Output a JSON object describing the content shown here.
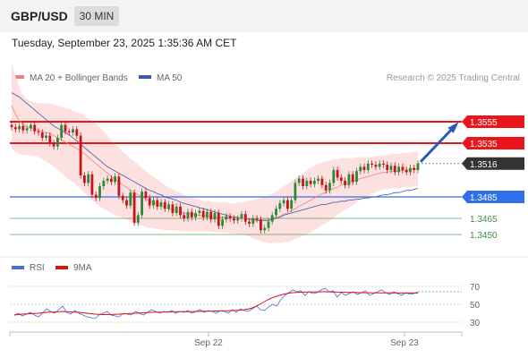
{
  "header": {
    "pair": "GBP/USD",
    "timeframe": "30 MIN",
    "datetime": "Tuesday, September 23, 2025 1:35:36 AM CET"
  },
  "legend": {
    "items": [
      {
        "label": "MA 20 + Bollinger Bands",
        "color": "#f08080"
      },
      {
        "label": "MA 50",
        "color": "#3a5aa8"
      }
    ],
    "credit": "Research © 2025 Trading Central"
  },
  "colors": {
    "resistance": "#e8151b",
    "support": "#2f6fe8",
    "target": "#5aa85a",
    "last_price": "#333333",
    "arrow": "#2a5ab5",
    "rsi": "#4a6bd8",
    "rsi_ma": "#e01010"
  },
  "chart_data": [
    {
      "type": "candlestick",
      "title": "",
      "x_ticks": [
        "Sep 22",
        "Sep 23"
      ],
      "ylim": [
        1.343,
        1.359
      ],
      "levels": [
        {
          "value": 1.3555,
          "label": "1.3555",
          "kind": "resistance"
        },
        {
          "value": 1.3535,
          "label": "1.3535",
          "kind": "resistance"
        },
        {
          "value": 1.3516,
          "label": "1.3516",
          "kind": "last"
        },
        {
          "value": 1.3485,
          "label": "1.3485",
          "kind": "support"
        },
        {
          "value": 1.3465,
          "label": "1.3465",
          "kind": "target"
        },
        {
          "value": 1.345,
          "label": "1.3450",
          "kind": "target"
        }
      ],
      "close": [
        1.355,
        1.3548,
        1.3551,
        1.3547,
        1.3549,
        1.3552,
        1.3546,
        1.3545,
        1.354,
        1.3542,
        1.3535,
        1.3532,
        1.354,
        1.3552,
        1.3546,
        1.3545,
        1.3548,
        1.3542,
        1.3505,
        1.3498,
        1.3506,
        1.3487,
        1.3484,
        1.3495,
        1.35,
        1.3502,
        1.3499,
        1.3504,
        1.3486,
        1.3482,
        1.3477,
        1.3489,
        1.3461,
        1.3468,
        1.349,
        1.3484,
        1.3477,
        1.3482,
        1.3476,
        1.348,
        1.3474,
        1.3478,
        1.347,
        1.3476,
        1.3468,
        1.3465,
        1.3471,
        1.3466,
        1.347,
        1.3472,
        1.3466,
        1.3471,
        1.3464,
        1.347,
        1.3458,
        1.3464,
        1.3467,
        1.3465,
        1.3463,
        1.3465,
        1.3469,
        1.3462,
        1.346,
        1.3465,
        1.3464,
        1.3454,
        1.3456,
        1.3462,
        1.3468,
        1.3474,
        1.3479,
        1.3482,
        1.3474,
        1.3482,
        1.3498,
        1.3502,
        1.3495,
        1.35,
        1.3497,
        1.35,
        1.3502,
        1.3496,
        1.3491,
        1.3498,
        1.351,
        1.3503,
        1.35,
        1.3496,
        1.3506,
        1.3499,
        1.3509,
        1.3513,
        1.351,
        1.3516,
        1.3515,
        1.3513,
        1.3516,
        1.3515,
        1.351,
        1.3514,
        1.3508,
        1.3513,
        1.351,
        1.3508,
        1.3512,
        1.351,
        1.3516
      ],
      "ma20": [
        1.357,
        1.3562,
        1.3556,
        1.3552,
        1.355,
        1.3549,
        1.3548,
        1.3547,
        1.3546,
        1.3545,
        1.3544,
        1.3542,
        1.354,
        1.3538,
        1.3536,
        1.3534,
        1.3532,
        1.353,
        1.3528,
        1.3525,
        1.3522,
        1.3519,
        1.3516,
        1.3513,
        1.351,
        1.3507,
        1.3504,
        1.3501,
        1.3499,
        1.3496,
        1.3494,
        1.3491,
        1.3489,
        1.3487,
        1.3485,
        1.3483,
        1.3481,
        1.348,
        1.3478,
        1.3477,
        1.3475,
        1.3474,
        1.3473,
        1.3472,
        1.3471,
        1.347,
        1.3469,
        1.3469,
        1.3468,
        1.3468,
        1.3467,
        1.3467,
        1.3467,
        1.3466,
        1.3466,
        1.3466,
        1.3466,
        1.3465,
        1.3465,
        1.3465,
        1.3465,
        1.3465,
        1.3465,
        1.3464,
        1.3464,
        1.3464,
        1.3464,
        1.3464,
        1.3465,
        1.3466,
        1.3467,
        1.3469,
        1.347,
        1.3472,
        1.3474,
        1.3476,
        1.3478,
        1.348,
        1.3482,
        1.3484,
        1.3486,
        1.3488,
        1.3489,
        1.3491,
        1.3493,
        1.3494,
        1.3496,
        1.3497,
        1.3498,
        1.3499,
        1.3501,
        1.3502,
        1.3503,
        1.3504,
        1.3505,
        1.3506,
        1.3507,
        1.3508,
        1.3508,
        1.3509,
        1.3509,
        1.3509,
        1.351,
        1.351,
        1.351,
        1.3511,
        1.3511
      ],
      "ma50": [
        1.3582,
        1.358,
        1.3578,
        1.3575,
        1.3572,
        1.3569,
        1.3566,
        1.3563,
        1.356,
        1.3557,
        1.3554,
        1.3551,
        1.3549,
        1.3547,
        1.3545,
        1.3543,
        1.354,
        1.3537,
        1.3534,
        1.3531,
        1.3528,
        1.3525,
        1.3522,
        1.3519,
        1.3516,
        1.3513,
        1.3511,
        1.3509,
        1.3507,
        1.3505,
        1.3503,
        1.3501,
        1.3499,
        1.3497,
        1.3495,
        1.3493,
        1.3491,
        1.349,
        1.3488,
        1.3487,
        1.3485,
        1.3484,
        1.3483,
        1.3482,
        1.348,
        1.3479,
        1.3478,
        1.3477,
        1.3476,
        1.3475,
        1.3474,
        1.3473,
        1.3472,
        1.3471,
        1.347,
        1.3469,
        1.3468,
        1.3467,
        1.3466,
        1.3466,
        1.3465,
        1.3465,
        1.3464,
        1.3464,
        1.3463,
        1.3463,
        1.3463,
        1.3463,
        1.3464,
        1.3465,
        1.3466,
        1.3468,
        1.3469,
        1.347,
        1.3471,
        1.3472,
        1.3473,
        1.3474,
        1.3475,
        1.3476,
        1.3477,
        1.3478,
        1.3478,
        1.3479,
        1.348,
        1.348,
        1.3481,
        1.3481,
        1.3482,
        1.3482,
        1.3483,
        1.3483,
        1.3484,
        1.3484,
        1.3485,
        1.3485,
        1.3486,
        1.3487,
        1.3487,
        1.3488,
        1.3489,
        1.3489,
        1.349,
        1.3491,
        1.3491,
        1.3492,
        1.3493
      ],
      "band_width": [
        0.004,
        0.0035,
        0.0031,
        0.0028,
        0.0026,
        0.0025,
        0.0025,
        0.0025,
        0.0026,
        0.0027,
        0.0028,
        0.0029,
        0.003,
        0.0031,
        0.0032,
        0.0033,
        0.0033,
        0.0034,
        0.0035,
        0.0036,
        0.0036,
        0.0037,
        0.0037,
        0.0037,
        0.0036,
        0.0035,
        0.0034,
        0.0033,
        0.0032,
        0.0031,
        0.003,
        0.0029,
        0.0029,
        0.0028,
        0.0027,
        0.0026,
        0.0025,
        0.0024,
        0.0023,
        0.0022,
        0.0021,
        0.002,
        0.0019,
        0.0018,
        0.0018,
        0.0017,
        0.0016,
        0.0016,
        0.0015,
        0.0015,
        0.0014,
        0.0014,
        0.0014,
        0.0014,
        0.0014,
        0.0014,
        0.0014,
        0.0014,
        0.0014,
        0.0015,
        0.0015,
        0.0016,
        0.0017,
        0.0018,
        0.0019,
        0.002,
        0.0021,
        0.0022,
        0.0023,
        0.0024,
        0.0025,
        0.0026,
        0.0027,
        0.0028,
        0.0028,
        0.0029,
        0.0029,
        0.003,
        0.003,
        0.003,
        0.003,
        0.0029,
        0.0029,
        0.0028,
        0.0027,
        0.0026,
        0.0025,
        0.0024,
        0.0023,
        0.0022,
        0.0021,
        0.002,
        0.0019,
        0.0018,
        0.0017,
        0.0017,
        0.0016,
        0.0016,
        0.0016,
        0.0016,
        0.0016,
        0.0016,
        0.0016,
        0.0016,
        0.0016,
        0.0016,
        0.0016
      ]
    },
    {
      "type": "line",
      "title": "",
      "legend": [
        {
          "name": "RSI"
        },
        {
          "name": "9MA"
        }
      ],
      "y_ticks": [
        70,
        50,
        30
      ],
      "ylim": [
        20,
        80
      ],
      "series": [
        {
          "name": "RSI",
          "values": [
            38,
            40,
            37,
            39,
            41,
            38,
            36,
            40,
            45,
            42,
            40,
            44,
            48,
            41,
            39,
            43,
            40,
            38,
            36,
            35,
            34,
            38,
            40,
            42,
            38,
            37,
            36,
            40,
            39,
            38,
            42,
            40,
            38,
            41,
            44,
            42,
            40,
            42,
            41,
            43,
            40,
            42,
            41,
            43,
            40,
            42,
            44,
            41,
            43,
            42,
            40,
            43,
            42,
            40,
            44,
            41,
            45,
            43,
            42,
            45,
            48,
            44,
            43,
            47,
            50,
            48,
            55,
            60,
            63,
            66,
            64,
            65,
            60,
            64,
            62,
            63,
            66,
            68,
            64,
            65,
            58,
            63,
            60,
            62,
            64,
            61,
            63,
            65,
            60,
            62,
            64,
            66,
            63,
            61,
            64,
            62,
            60,
            63,
            61,
            62,
            64
          ]
        },
        {
          "name": "9MA",
          "values": [
            38,
            38.5,
            39,
            39.2,
            39.5,
            39.8,
            40,
            40.5,
            41,
            41.3,
            41.5,
            41.8,
            42,
            41.8,
            41.5,
            41.3,
            41,
            40.5,
            40,
            39.5,
            39,
            38.8,
            38.5,
            38.5,
            38.6,
            38.8,
            39,
            39.2,
            39.5,
            39.8,
            40,
            40.3,
            40.5,
            40.8,
            41,
            41.2,
            41.3,
            41.4,
            41.5,
            41.6,
            41.7,
            41.7,
            41.8,
            41.8,
            41.9,
            42,
            42.1,
            42.2,
            42.3,
            42.4,
            42.5,
            42.6,
            42.7,
            42.8,
            43,
            43.2,
            43.5,
            44,
            44.8,
            46,
            48,
            50.5,
            53,
            55.5,
            57.5,
            59,
            60.5,
            61.5,
            62.5,
            63,
            63.3,
            63.5,
            63.7,
            63.8,
            63.8,
            63.9,
            64,
            64,
            63.9,
            63.8,
            63.6,
            63.5,
            63.4,
            63.3,
            63.2,
            63.1,
            63,
            62.9,
            62.9,
            62.8,
            62.8,
            62.8,
            62.7,
            62.7,
            62.7,
            62.6,
            62.6,
            62.6,
            62.6,
            62.6,
            62.6
          ]
        }
      ]
    }
  ]
}
